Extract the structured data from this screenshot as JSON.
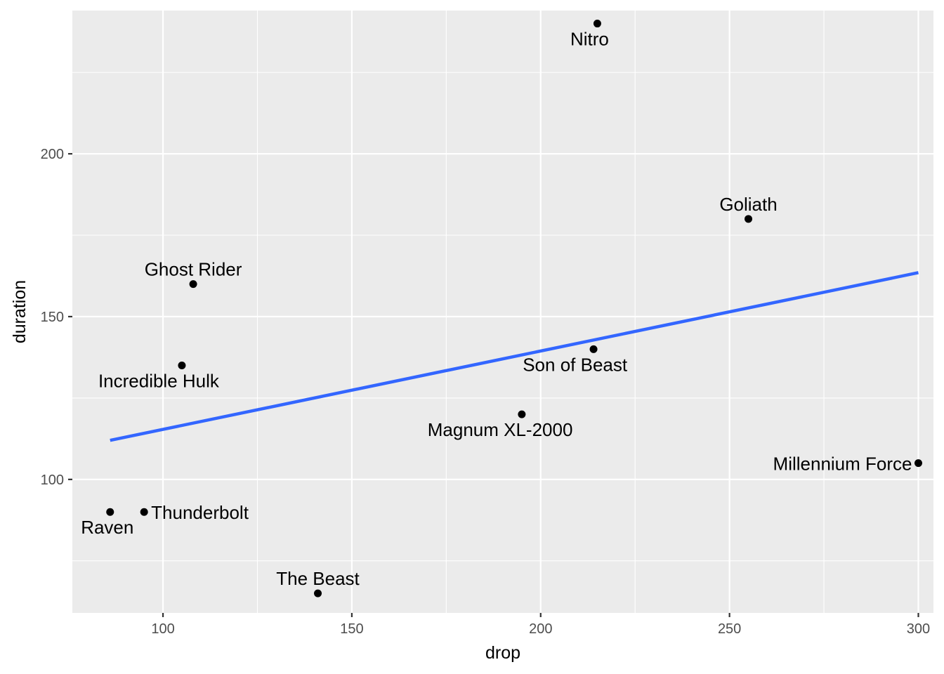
{
  "chart_data": {
    "type": "scatter",
    "title": "",
    "xlabel": "drop",
    "ylabel": "duration",
    "xlim": [
      76,
      304
    ],
    "ylim": [
      59,
      244
    ],
    "x_ticks": [
      100,
      150,
      200,
      250,
      300
    ],
    "y_ticks": [
      100,
      150,
      200
    ],
    "x_tick_labels": [
      "100",
      "150",
      "200",
      "250",
      "300"
    ],
    "y_tick_labels": [
      "100",
      "150",
      "200"
    ],
    "grid": true,
    "legend": "none",
    "points": [
      {
        "label": "Nitro",
        "x": 215,
        "y": 240,
        "label_pos": "below-left"
      },
      {
        "label": "Goliath",
        "x": 255,
        "y": 180,
        "label_pos": "above"
      },
      {
        "label": "Ghost Rider",
        "x": 108,
        "y": 160,
        "label_pos": "above"
      },
      {
        "label": "Son of Beast",
        "x": 214,
        "y": 140,
        "label_pos": "below-left"
      },
      {
        "label": "Incredible Hulk",
        "x": 105,
        "y": 135,
        "label_pos": "below-left"
      },
      {
        "label": "Magnum XL-2000",
        "x": 195,
        "y": 120,
        "label_pos": "below-left"
      },
      {
        "label": "Millennium Force",
        "x": 300,
        "y": 105,
        "label_pos": "left"
      },
      {
        "label": "Raven",
        "x": 86,
        "y": 90,
        "label_pos": "below"
      },
      {
        "label": "Thunderbolt",
        "x": 95,
        "y": 90,
        "label_pos": "right"
      },
      {
        "label": "The Beast",
        "x": 141,
        "y": 65,
        "label_pos": "above"
      }
    ],
    "trend_line": {
      "x": [
        86,
        300
      ],
      "y": [
        112,
        163.5
      ],
      "color": "#3366FF"
    },
    "colors": {
      "panel": "#EBEBEB",
      "grid": "#FFFFFF",
      "point": "#000000"
    }
  }
}
